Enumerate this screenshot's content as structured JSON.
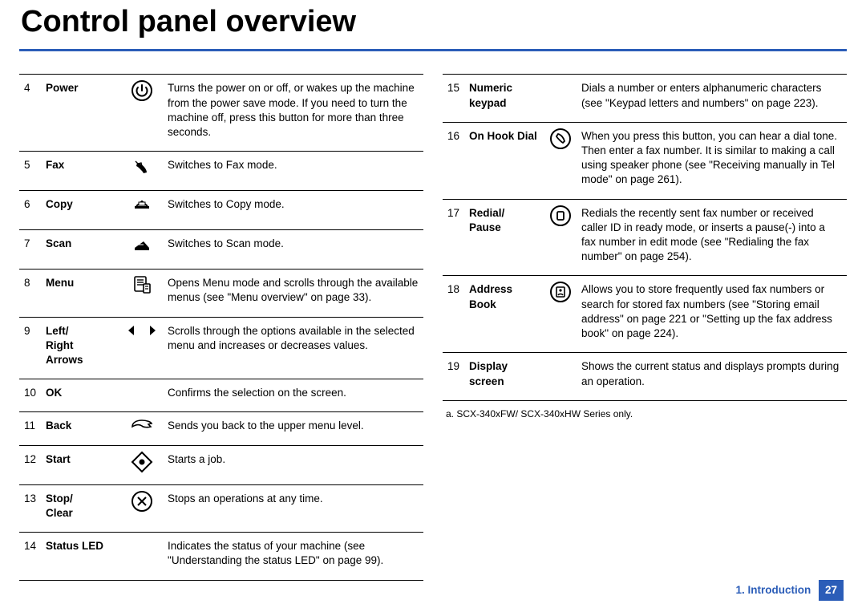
{
  "title": "Control panel overview",
  "left": [
    {
      "num": "4",
      "name": "Power",
      "icon": "power",
      "desc": "Turns the power on or off, or wakes up the machine from the power save mode. If you need to turn the machine off, press this button for more than three seconds."
    },
    {
      "num": "5",
      "name": "Fax",
      "icon": "fax",
      "desc": "Switches to Fax mode."
    },
    {
      "num": "6",
      "name": "Copy",
      "icon": "copy",
      "desc": "Switches to Copy mode."
    },
    {
      "num": "7",
      "name": "Scan",
      "icon": "scan",
      "desc": "Switches to Scan mode."
    },
    {
      "num": "8",
      "name": "Menu",
      "icon": "menu",
      "desc": "Opens Menu mode and scrolls through the available menus (see \"Menu overview\" on page 33)."
    },
    {
      "num": "9",
      "name": "Left/ Right Arrows",
      "icon": "arrows",
      "desc": "Scrolls through the options available in the selected menu and increases or decreases values."
    },
    {
      "num": "10",
      "name": "OK",
      "icon": "",
      "desc": "Confirms the selection on the screen."
    },
    {
      "num": "11",
      "name": "Back",
      "icon": "back",
      "desc": "Sends you back to the upper menu level."
    },
    {
      "num": "12",
      "name": "Start",
      "icon": "start",
      "desc": "Starts a job."
    },
    {
      "num": "13",
      "name": "Stop/ Clear",
      "icon": "stop",
      "desc": "Stops an operations at any time."
    },
    {
      "num": "14",
      "name": "Status LED",
      "icon": "",
      "desc": "Indicates the status of your machine (see \"Understanding the status LED\" on page 99)."
    }
  ],
  "right": [
    {
      "num": "15",
      "name": "Numeric keypad",
      "icon": "",
      "desc": "Dials a number or enters alphanumeric characters (see \"Keypad letters and numbers\" on page 223)."
    },
    {
      "num": "16",
      "name": "On Hook Dial",
      "icon": "dial",
      "desc": "When you press this button, you can hear a dial tone. Then enter a fax number. It is similar to making a call using speaker phone (see \"Receiving manually in Tel mode\" on page 261)."
    },
    {
      "num": "17",
      "name": "Redial/ Pause",
      "icon": "pause",
      "desc": "Redials the recently sent fax number or received caller ID in ready mode, or inserts a pause(-) into a fax number in edit mode (see \"Redialing the fax number\" on page 254)."
    },
    {
      "num": "18",
      "name": "Address Book",
      "icon": "book",
      "desc": "Allows you to store frequently used fax numbers or search for stored fax numbers (see \"Storing email address\" on page 221 or \"Setting up the fax address book\" on page 224)."
    },
    {
      "num": "19",
      "name": "Display screen",
      "icon": "",
      "desc": "Shows the current status and displays prompts during an operation."
    }
  ],
  "footnote": "a.  SCX-340xFW/ SCX-340xHW Series only.",
  "footer": {
    "chapter": "1.  Introduction",
    "page": "27"
  },
  "colors": {
    "accent": "#2b5db8",
    "text": "#000000",
    "bg": "#ffffff"
  }
}
